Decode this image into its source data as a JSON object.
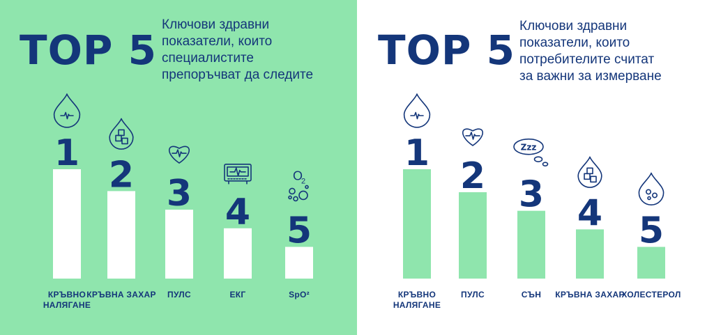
{
  "chart_data": [
    {
      "type": "bar",
      "title": "TOP 5",
      "subtitle": [
        "Ключови здравни",
        "показатели, които",
        "специалистите",
        "препоръчват да следите"
      ],
      "categories": [
        "КРЪВНО НАЛЯГАНЕ",
        "КРЪВНА ЗАХАР",
        "ПУЛС",
        "ЕКГ",
        "SpO²"
      ],
      "ranks": [
        "1",
        "2",
        "3",
        "4",
        "5"
      ],
      "icons": [
        "blood-drop-pulse-icon",
        "blood-drop-sugar-cubes-icon",
        "heart-pulse-icon",
        "ecg-monitor-icon",
        "oxygen-bubbles-icon"
      ],
      "values": [
        100,
        80,
        63,
        46,
        29
      ],
      "ylim": [
        0,
        100
      ],
      "bar_color": "#ffffff",
      "background_color": "#8fe5ad"
    },
    {
      "type": "bar",
      "title": "TOP 5",
      "subtitle": [
        "Ключови здравни",
        "показатели, които",
        "потребителите считат",
        "за важни за измерване"
      ],
      "categories": [
        "КРЪВНО НАЛЯГАНЕ",
        "ПУЛС",
        "СЪН",
        "КРЪВНА ЗАХАР",
        "ХОЛЕСТЕРОЛ"
      ],
      "ranks": [
        "1",
        "2",
        "3",
        "4",
        "5"
      ],
      "icons": [
        "blood-drop-pulse-icon",
        "heart-pulse-icon",
        "sleep-zzz-cloud-icon",
        "blood-drop-sugar-cubes-icon",
        "blood-drop-cholesterol-icon"
      ],
      "values": [
        100,
        79,
        62,
        45,
        29
      ],
      "ylim": [
        0,
        100
      ],
      "bar_color": "#8fe5ad",
      "background_color": "#ffffff"
    }
  ]
}
